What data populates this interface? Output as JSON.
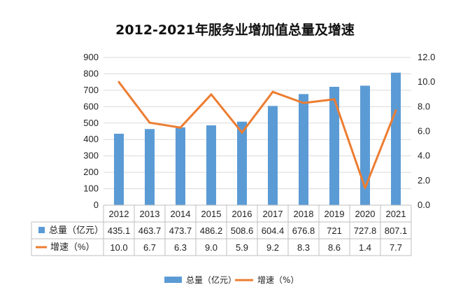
{
  "chart_data": {
    "type": "bar",
    "title": "2012-2021年服务业增加值总量及增速",
    "categories": [
      "2012",
      "2013",
      "2014",
      "2015",
      "2016",
      "2017",
      "2018",
      "2019",
      "2020",
      "2021"
    ],
    "series": [
      {
        "name": "总量（亿元）",
        "type": "bar",
        "axis": "left",
        "color": "#5B9BD5",
        "values": [
          435.1,
          463.7,
          473.7,
          486.2,
          508.6,
          604.4,
          676.8,
          721,
          727.8,
          807.1
        ],
        "labels": [
          "435.1",
          "463.7",
          "473.7",
          "486.2",
          "508.6",
          "604.4",
          "676.8",
          "721",
          "727.8",
          "807.1"
        ]
      },
      {
        "name": "增速（%）",
        "type": "line",
        "axis": "right",
        "color": "#ED7D31",
        "values": [
          10.0,
          6.7,
          6.3,
          9.0,
          5.9,
          9.2,
          8.3,
          8.6,
          1.4,
          7.7
        ],
        "labels": [
          "10.0",
          "6.7",
          "6.3",
          "9.0",
          "5.9",
          "9.2",
          "8.3",
          "8.6",
          "1.4",
          "7.7"
        ]
      }
    ],
    "y_left": {
      "ylim": [
        0,
        900
      ],
      "ticks": [
        "0",
        "100",
        "200",
        "300",
        "400",
        "500",
        "600",
        "700",
        "800",
        "900"
      ]
    },
    "y_right": {
      "ylim": [
        0,
        12
      ],
      "ticks": [
        "0.0",
        "2.0",
        "4.0",
        "6.0",
        "8.0",
        "10.0",
        "12.0"
      ]
    },
    "grid": true,
    "data_table": true,
    "legend_position": "bottom"
  }
}
